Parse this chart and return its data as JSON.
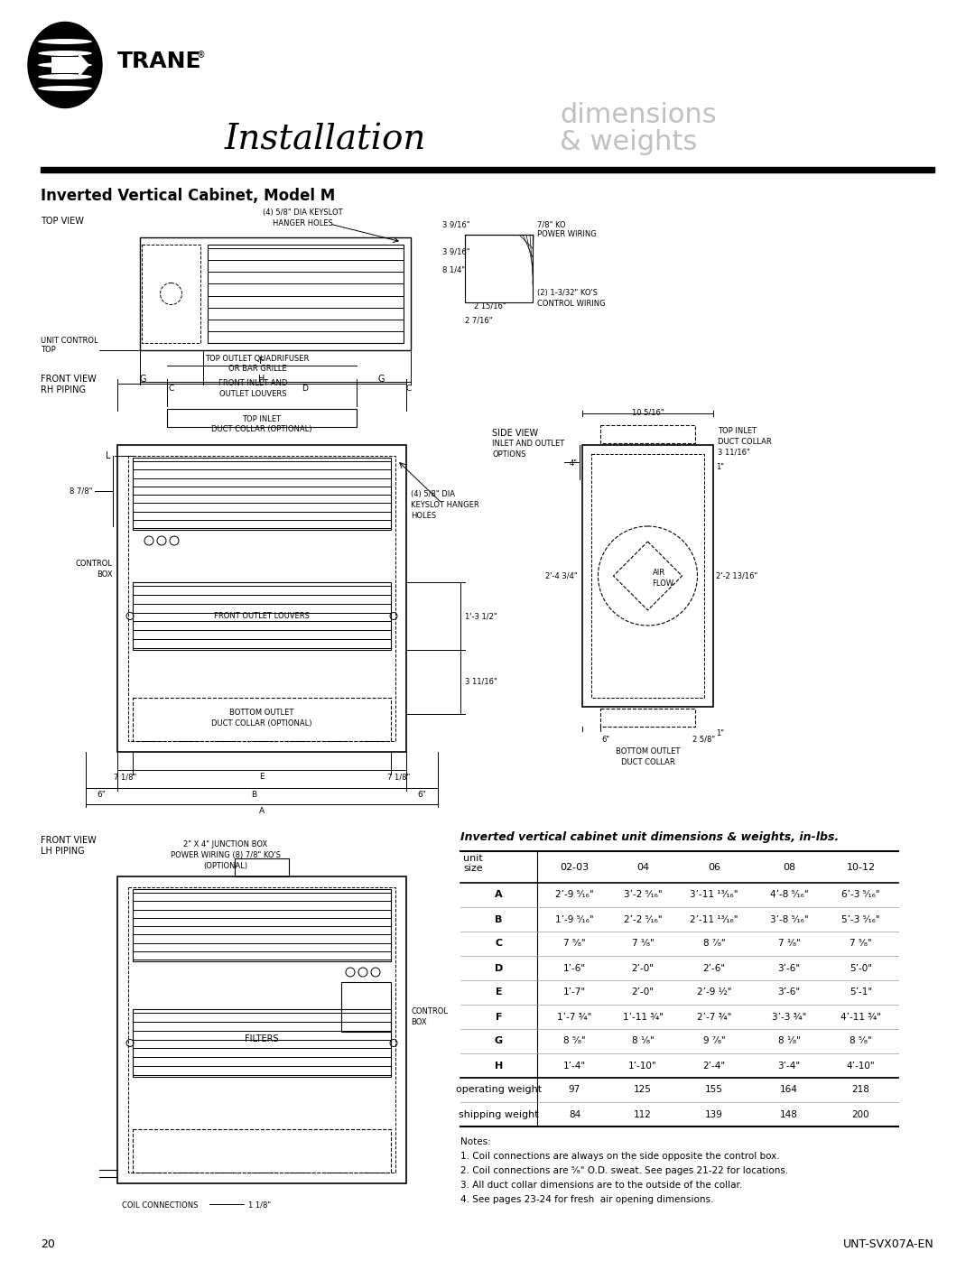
{
  "page_title_left": "Installation",
  "page_title_right": "dimensions\n& weights",
  "section_title": "Inverted Vertical Cabinet, Model M",
  "table_title": "Inverted vertical cabinet unit dimensions & weights, in-lbs.",
  "table_headers": [
    "unit\nsize",
    "02-03",
    "04",
    "06",
    "08",
    "10-12"
  ],
  "table_rows": [
    [
      "A",
      "2’-9 ⁵⁄₁₆\"",
      "3’-2 ⁵⁄₁₆\"",
      "3’-11 ¹³⁄₁₆\"",
      "4’-8 ⁵⁄₁₆\"",
      "6’-3 ⁵⁄₁₆\""
    ],
    [
      "B",
      "1’-9 ⁵⁄₁₆\"",
      "2’-2 ⁵⁄₁₆\"",
      "2’-11 ¹³⁄₁₆\"",
      "3’-8 ⁵⁄₁₆\"",
      "5’-3 ⁵⁄₁₆\""
    ],
    [
      "C",
      "7 ⁵⁄₈\"",
      "7 ¹⁄₈\"",
      "8 ⁷⁄₈\"",
      "7 ¹⁄₈\"",
      "7 ⁵⁄₈\""
    ],
    [
      "D",
      "1’-6\"",
      "2’-0\"",
      "2’-6\"",
      "3’-6\"",
      "5’-0\""
    ],
    [
      "E",
      "1’-7\"",
      "2’-0\"",
      "2’-9 ½\"",
      "3’-6\"",
      "5’-1\""
    ],
    [
      "F",
      "1’-7 ¾\"",
      "1’-11 ¾\"",
      "2’-7 ¾\"",
      "3’-3 ¾\"",
      "4’-11 ¾\""
    ],
    [
      "G",
      "8 ⁵⁄₈\"",
      "8 ¹⁄₈\"",
      "9 ⁷⁄₈\"",
      "8 ¹⁄₈\"",
      "8 ⁵⁄₈\""
    ],
    [
      "H",
      "1’-4\"",
      "1’-10\"",
      "2’-4\"",
      "3’-4\"",
      "4’-10\""
    ],
    [
      "operating weight",
      "97",
      "125",
      "155",
      "164",
      "218"
    ],
    [
      "shipping weight",
      "84",
      "112",
      "139",
      "148",
      "200"
    ]
  ],
  "notes": [
    "Notes:",
    "1. Coil connections are always on the side opposite the control box.",
    "2. Coil connections are ⁵⁄₈\" O.D. sweat. See pages 21-22 for locations.",
    "3. All duct collar dimensions are to the outside of the collar.",
    "4. See pages 23-24 for fresh  air opening dimensions."
  ],
  "page_number": "20",
  "doc_number": "UNT-SVX07A-EN"
}
